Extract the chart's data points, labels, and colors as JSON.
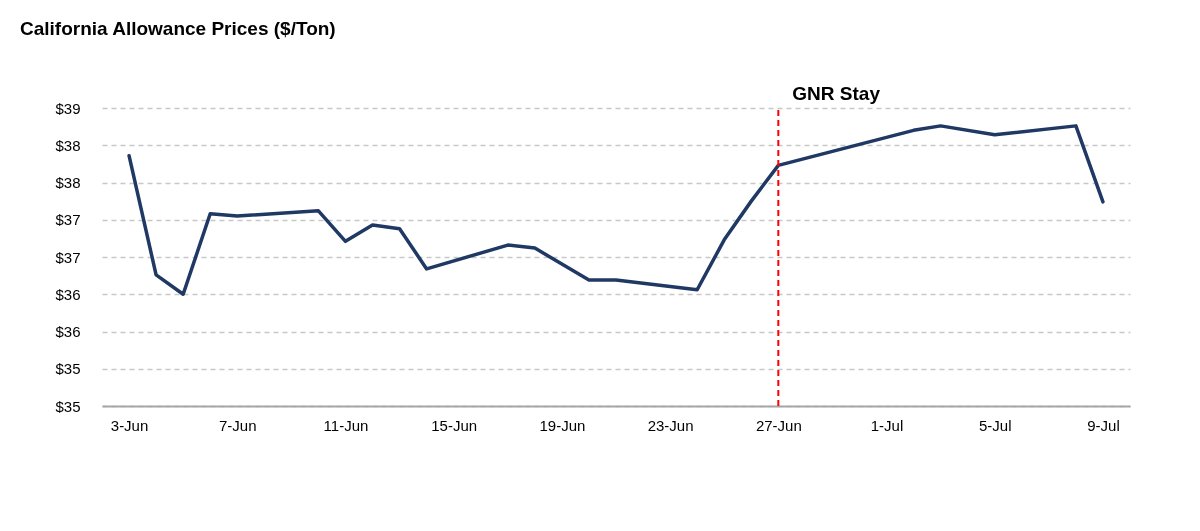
{
  "chart_data": {
    "type": "line",
    "title": "California Allowance Prices ($/Ton)",
    "x": [
      "--06-03",
      "--06-04",
      "--06-05",
      "--06-06",
      "--06-07",
      "--06-10",
      "--06-11",
      "--06-12",
      "--06-13",
      "--06-14",
      "--06-17",
      "--06-18",
      "--06-20",
      "--06-21",
      "--06-24",
      "--06-25",
      "--06-26",
      "--06-27",
      "--07-02",
      "--07-03",
      "--07-05",
      "--07-08",
      "--07-09"
    ],
    "series": [
      {
        "color": "#1f3864",
        "values": [
          38.36,
          36.76,
          36.5,
          37.58,
          37.55,
          37.62,
          37.21,
          37.43,
          37.38,
          36.84,
          37.16,
          37.12,
          36.69,
          36.69,
          36.56,
          37.23,
          37.75,
          38.23,
          38.7,
          38.76,
          38.64,
          38.76,
          37.74
        ]
      }
    ],
    "xlim": [
      "--06-02",
      "--07-10"
    ],
    "xticks": [
      {
        "value": "--06-03",
        "label": "3-Jun"
      },
      {
        "value": "--06-07",
        "label": "7-Jun"
      },
      {
        "value": "--06-11",
        "label": "11-Jun"
      },
      {
        "value": "--06-15",
        "label": "15-Jun"
      },
      {
        "value": "--06-19",
        "label": "19-Jun"
      },
      {
        "value": "--06-23",
        "label": "23-Jun"
      },
      {
        "value": "--06-27",
        "label": "27-Jun"
      },
      {
        "value": "--07-01",
        "label": "1-Jul"
      },
      {
        "value": "--07-05",
        "label": "5-Jul"
      },
      {
        "value": "--07-09",
        "label": "9-Jul"
      }
    ],
    "ylim": [
      35,
      39
    ],
    "yticks": [
      {
        "value": 35,
        "label": "$35"
      },
      {
        "value": 35.5,
        "label": "$35"
      },
      {
        "value": 36,
        "label": "$36"
      },
      {
        "value": 36.5,
        "label": "$36"
      },
      {
        "value": 37,
        "label": "$37"
      },
      {
        "value": 37.5,
        "label": "$37"
      },
      {
        "value": 38,
        "label": "$38"
      },
      {
        "value": 38.5,
        "label": "$38"
      },
      {
        "value": 39,
        "label": "$39"
      }
    ],
    "ref_lines": [
      {
        "axis": "x",
        "value": "--06-27",
        "label": "GNR Stay",
        "color": "#ff0000",
        "line_style": "dashed"
      }
    ],
    "grid": "y",
    "marker": "none",
    "line_style": "solid"
  }
}
